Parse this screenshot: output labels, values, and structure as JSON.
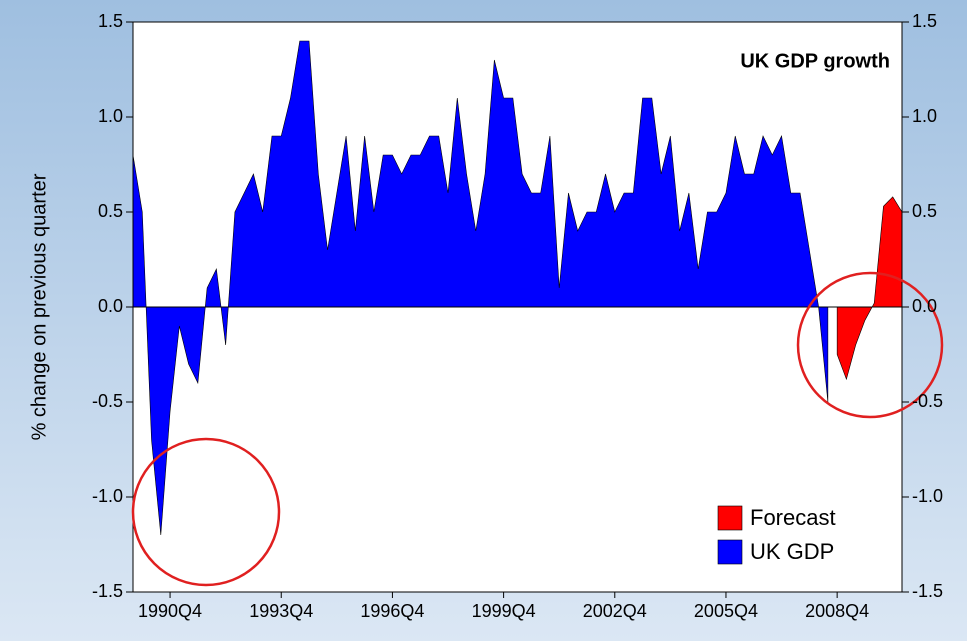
{
  "chart_data": {
    "type": "area",
    "title": "UK GDP growth",
    "y_label": "% change on previous quarter",
    "series": [
      {
        "name": "Forecast",
        "color": "#ff0000",
        "x": [
          2008.75,
          2009,
          2009.25,
          2009.5,
          2009.75,
          2010,
          2010.25,
          2010.5
        ],
        "values": [
          -0.25,
          -0.38,
          -0.2,
          -0.07,
          0.02,
          0.53,
          0.58,
          0.5
        ]
      },
      {
        "name": "UK GDP",
        "color": "#0000ff",
        "x": [
          1989.75,
          1990,
          1990.25,
          1990.5,
          1990.75,
          1991,
          1991.25,
          1991.5,
          1991.75,
          1992,
          1992.25,
          1992.5,
          1992.75,
          1993,
          1993.25,
          1993.5,
          1993.75,
          1994,
          1994.25,
          1994.5,
          1994.75,
          1995,
          1995.25,
          1995.5,
          1995.75,
          1996,
          1996.25,
          1996.5,
          1996.75,
          1997,
          1997.25,
          1997.5,
          1997.75,
          1998,
          1998.25,
          1998.5,
          1998.75,
          1999,
          1999.25,
          1999.5,
          1999.75,
          2000,
          2000.25,
          2000.5,
          2000.75,
          2001,
          2001.25,
          2001.5,
          2001.75,
          2002,
          2002.25,
          2002.5,
          2002.75,
          2003,
          2003.25,
          2003.5,
          2003.75,
          2004,
          2004.25,
          2004.5,
          2004.75,
          2005,
          2005.25,
          2005.5,
          2005.75,
          2006,
          2006.25,
          2006.5,
          2006.75,
          2007,
          2007.25,
          2007.5,
          2007.75,
          2008,
          2008.25,
          2008.5
        ],
        "values": [
          0.8,
          0.5,
          -0.7,
          -1.2,
          -0.55,
          -0.1,
          -0.3,
          -0.4,
          0.1,
          0.2,
          -0.2,
          0.5,
          0.6,
          0.7,
          0.5,
          0.9,
          0.9,
          1.1,
          1.4,
          1.4,
          0.7,
          0.3,
          0.6,
          0.9,
          0.4,
          0.9,
          0.5,
          0.8,
          0.8,
          0.7,
          0.8,
          0.8,
          0.9,
          0.9,
          0.6,
          1.1,
          0.7,
          0.4,
          0.7,
          1.3,
          1.1,
          1.1,
          0.7,
          0.6,
          0.6,
          0.9,
          0.1,
          0.6,
          0.4,
          0.5,
          0.5,
          0.7,
          0.5,
          0.6,
          0.6,
          1.1,
          1.1,
          0.7,
          0.9,
          0.4,
          0.6,
          0.2,
          0.5,
          0.5,
          0.6,
          0.9,
          0.7,
          0.7,
          0.9,
          0.8,
          0.9,
          0.6,
          0.6,
          0.3,
          0.0,
          -0.5
        ]
      }
    ],
    "xlim": [
      1989.75,
      2010.5
    ],
    "xticks": [
      {
        "value": 1990.75,
        "label": "1990Q4"
      },
      {
        "value": 1993.75,
        "label": "1993Q4"
      },
      {
        "value": 1996.75,
        "label": "1996Q4"
      },
      {
        "value": 1999.75,
        "label": "1999Q4"
      },
      {
        "value": 2002.75,
        "label": "2002Q4"
      },
      {
        "value": 2005.75,
        "label": "2005Q4"
      },
      {
        "value": 2008.75,
        "label": "2008Q4"
      }
    ],
    "ylim": [
      -1.5,
      1.5
    ],
    "yticks": [
      1.5,
      {
        "value": 1.0,
        "label": "1.0"
      },
      0.5,
      {
        "value": 0.0,
        "label": "0.0"
      },
      -0.5,
      {
        "value": -1.0,
        "label": "-1.0"
      },
      -1.5
    ],
    "legend": "lower right"
  }
}
